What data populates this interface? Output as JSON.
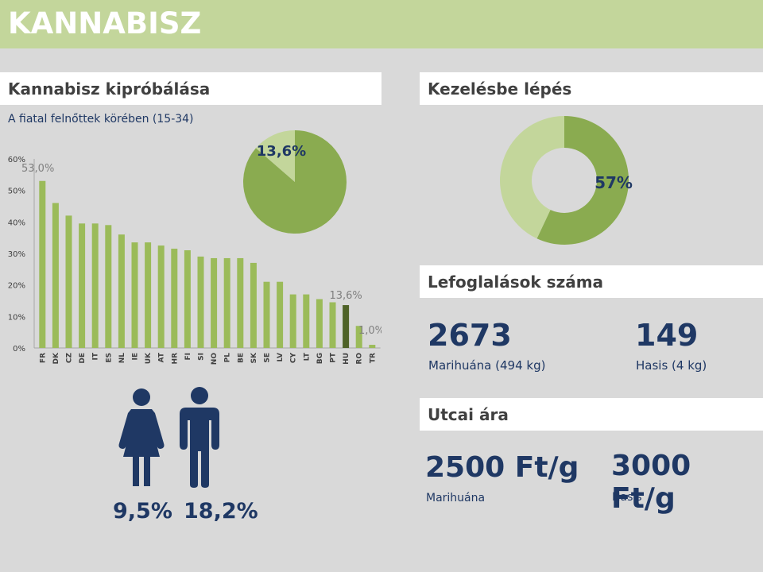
{
  "header": {
    "title": "KANNABISZ"
  },
  "left_section": {
    "title": "Kannabisz kipróbálása",
    "subtitle": "A fiatal felnőttek körében (15-34)",
    "pie_label": "13,6%"
  },
  "chart_data": {
    "type": "bar",
    "categories": [
      "FR",
      "DK",
      "CZ",
      "DE",
      "IT",
      "ES",
      "NL",
      "IE",
      "UK",
      "AT",
      "HR",
      "FI",
      "SI",
      "NO",
      "PL",
      "BE",
      "SK",
      "SE",
      "LV",
      "CY",
      "LT",
      "BG",
      "PT",
      "HU",
      "RO",
      "TR"
    ],
    "values": [
      53.0,
      46.0,
      42.0,
      39.5,
      39.5,
      39.0,
      36.0,
      33.5,
      33.5,
      32.5,
      31.5,
      31.0,
      29.0,
      28.5,
      28.5,
      28.5,
      27.0,
      21.0,
      21.0,
      17.0,
      17.0,
      15.5,
      14.5,
      13.6,
      7.0,
      1.0
    ],
    "highlight": "HU",
    "ylim": [
      0,
      60
    ],
    "yticks": [
      "0%",
      "10%",
      "20%",
      "30%",
      "40%",
      "50%",
      "60%"
    ],
    "annotations": {
      "max": "53,0%",
      "hu": "13,6%",
      "min": "1,0%"
    },
    "bar_color": "#9bbb59",
    "highlight_color": "#4f6228"
  },
  "pie_data": {
    "type": "pie",
    "value_pct": 13.6,
    "main_color": "#8aab50",
    "slice_color": "#c3d69b"
  },
  "gender": {
    "female_pct": "9,5%",
    "male_pct": "18,2%",
    "icon_color": "#1f3864"
  },
  "treatment": {
    "title": "Kezelésbe lépés",
    "value_pct": 57,
    "label": "57%",
    "main_color": "#8aab50",
    "rest_color": "#c3d69b"
  },
  "seizures": {
    "title": "Lefoglalások száma",
    "items": [
      {
        "number": "2673",
        "label": "Marihuána (494 kg)"
      },
      {
        "number": "149",
        "label": "Hasis (4 kg)"
      }
    ]
  },
  "street_price": {
    "title": "Utcai ára",
    "items": [
      {
        "price": "2500 Ft/g",
        "label": "Marihuána"
      },
      {
        "price": "3000 Ft/g",
        "label": "Hasis"
      }
    ]
  }
}
